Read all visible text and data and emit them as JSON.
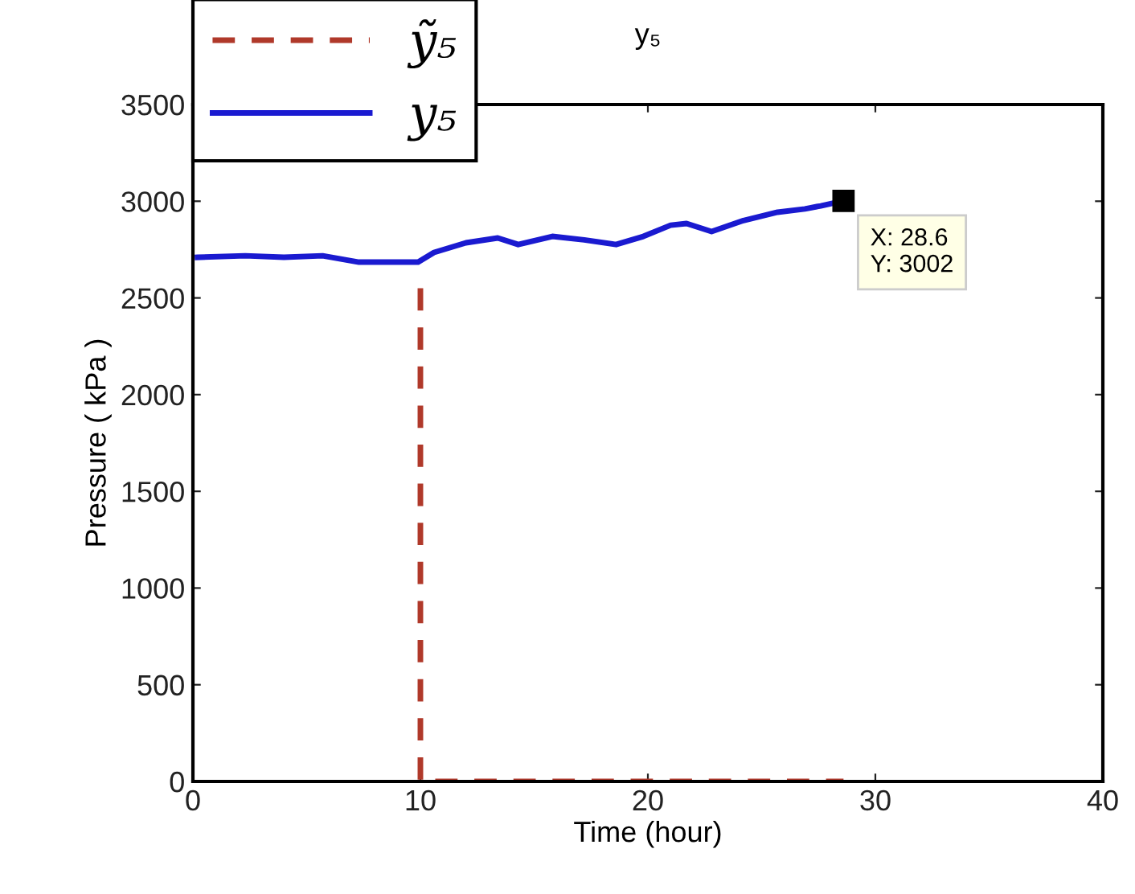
{
  "chart_data": {
    "type": "line",
    "title": "y₅",
    "xlabel": "Time (hour)",
    "ylabel": "Pressure ( kPa )",
    "xlim": [
      0,
      40
    ],
    "xticks": [
      0,
      10,
      20,
      30,
      40
    ],
    "ylim": [
      0,
      3500
    ],
    "yticks": [
      0,
      500,
      1000,
      1500,
      2000,
      2500,
      3000,
      3500
    ],
    "grid": false,
    "legend": "top left",
    "marker": "none",
    "series": [
      {
        "name": "ỹ₅",
        "color": "#b0392a",
        "line_style": "dashed",
        "x": [
          10,
          10,
          28.6
        ],
        "values": [
          2550,
          0,
          0
        ]
      },
      {
        "name": "y₅",
        "color": "#1a1ad0",
        "line_style": "solid",
        "x": [
          0.2,
          2.3,
          4.0,
          5.7,
          7.3,
          8.7,
          9.9,
          10.6,
          12.0,
          13.4,
          14.3,
          15.8,
          17.2,
          18.6,
          19.8,
          21.0,
          21.7,
          22.8,
          24.2,
          25.7,
          26.9,
          27.6,
          28.6
        ],
        "values": [
          2710,
          2718,
          2710,
          2718,
          2685,
          2685,
          2685,
          2735,
          2785,
          2810,
          2776,
          2818,
          2800,
          2776,
          2818,
          2876,
          2885,
          2843,
          2900,
          2943,
          2960,
          2976,
          3002
        ]
      }
    ],
    "annotations": [
      {
        "text": "X: 28.6\nY: 3002",
        "x": 28.6,
        "y": 3002
      }
    ]
  }
}
